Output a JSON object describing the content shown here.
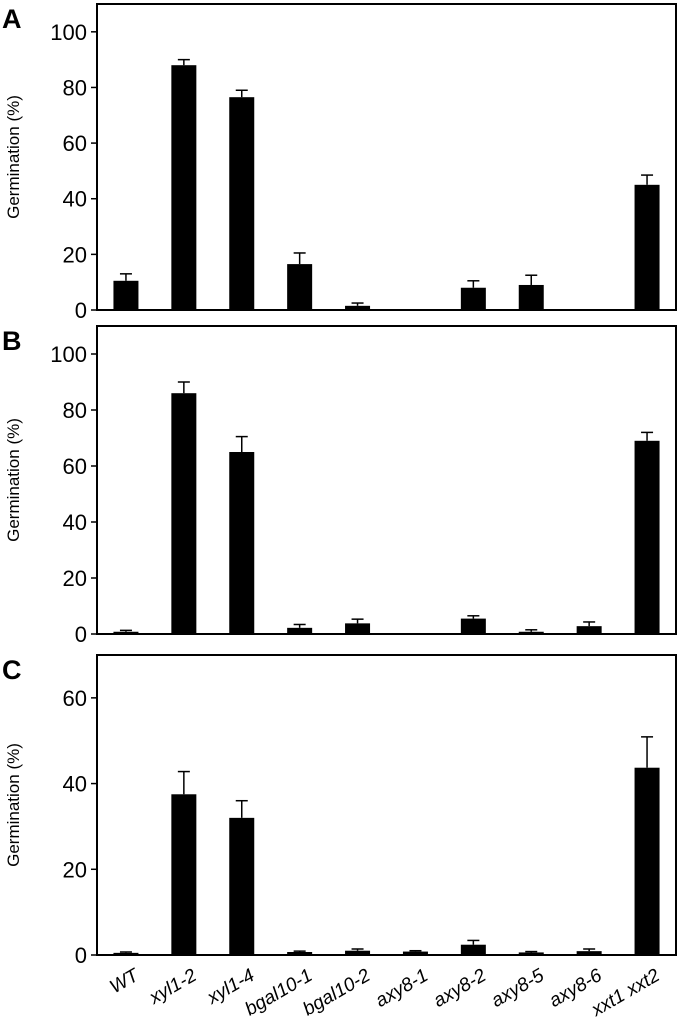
{
  "colors": {
    "bar": "#000000",
    "frame": "#000000",
    "background": "#ffffff"
  },
  "categories": [
    "WT",
    "xyl1-2",
    "xyl1-4",
    "bgal10-1",
    "bgal10-2",
    "axy8-1",
    "axy8-2",
    "axy8-5",
    "axy8-6",
    "xxt1 xxt2"
  ],
  "chart_data": [
    {
      "type": "bar",
      "panel": "A",
      "ylabel": "Germination (%)",
      "ylim": [
        0,
        110
      ],
      "yticks": [
        0,
        20,
        40,
        60,
        80,
        100
      ],
      "categories": [
        "WT",
        "xyl1-2",
        "xyl1-4",
        "bgal10-1",
        "bgal10-2",
        "axy8-1",
        "axy8-2",
        "axy8-5",
        "axy8-6",
        "xxt1 xxt2"
      ],
      "values": [
        10.5,
        88,
        76.5,
        16.5,
        1.5,
        0,
        8,
        9,
        0,
        45
      ],
      "errors": [
        2.5,
        2,
        2.5,
        4,
        1,
        0,
        2.5,
        3.5,
        0,
        3.5
      ],
      "grid": false
    },
    {
      "type": "bar",
      "panel": "B",
      "ylabel": "Germination (%)",
      "ylim": [
        0,
        110
      ],
      "yticks": [
        0,
        20,
        40,
        60,
        80,
        100
      ],
      "categories": [
        "WT",
        "xyl1-2",
        "xyl1-4",
        "bgal10-1",
        "bgal10-2",
        "axy8-1",
        "axy8-2",
        "axy8-5",
        "axy8-6",
        "xxt1 xxt2"
      ],
      "values": [
        0.8,
        86,
        65,
        2.2,
        3.8,
        0,
        5.5,
        0.8,
        2.8,
        69
      ],
      "errors": [
        0.5,
        4,
        5.5,
        1.2,
        1.5,
        0,
        1,
        0.7,
        1.5,
        3
      ],
      "grid": false
    },
    {
      "type": "bar",
      "panel": "C",
      "ylabel": "Germination (%)",
      "ylim": [
        0,
        70
      ],
      "yticks": [
        0,
        20,
        40,
        60
      ],
      "categories": [
        "WT",
        "xyl1-2",
        "xyl1-4",
        "bgal10-1",
        "bgal10-2",
        "axy8-1",
        "axy8-2",
        "axy8-5",
        "axy8-6",
        "xxt1 xxt2"
      ],
      "values": [
        0.5,
        37.5,
        32,
        0.7,
        1,
        0.8,
        2.4,
        0.6,
        0.9,
        43.7
      ],
      "errors": [
        0.2,
        5.3,
        4,
        0.2,
        0.4,
        0.2,
        1,
        0.2,
        0.5,
        7.2
      ],
      "grid": false
    }
  ]
}
